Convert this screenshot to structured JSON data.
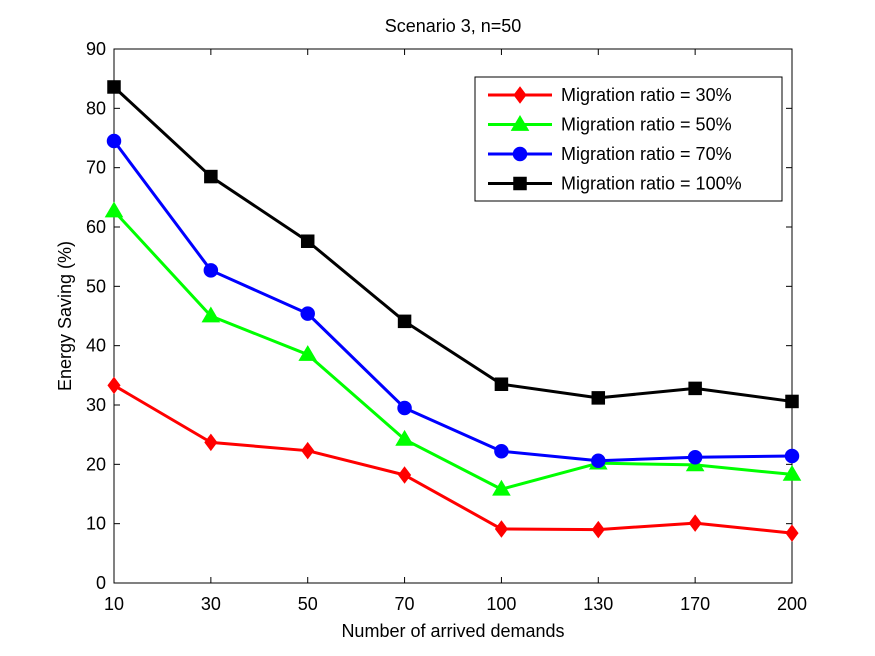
{
  "chart_data": {
    "type": "line",
    "title": "Scenario 3, n=50",
    "xlabel": "Number of arrived demands",
    "ylabel": "Energy Saving (%)",
    "categories": [
      "10",
      "30",
      "50",
      "70",
      "100",
      "130",
      "170",
      "200"
    ],
    "ylim": [
      0,
      90
    ],
    "yticks": [
      0,
      10,
      20,
      30,
      40,
      50,
      60,
      70,
      80,
      90
    ],
    "grid": false,
    "legend_position": "top-right",
    "series": [
      {
        "name": "Migration ratio = 30%",
        "color": "#ff0000",
        "marker": "diamond",
        "values": [
          33.3,
          23.7,
          22.3,
          18.2,
          9.1,
          9.0,
          10.1,
          8.4
        ]
      },
      {
        "name": "Migration ratio = 50%",
        "color": "#00ff00",
        "marker": "triangle",
        "values": [
          62.7,
          45.0,
          38.5,
          24.2,
          15.8,
          20.2,
          19.9,
          18.3
        ]
      },
      {
        "name": "Migration ratio = 70%",
        "color": "#0000ff",
        "marker": "circle",
        "values": [
          74.5,
          52.7,
          45.4,
          29.5,
          22.2,
          20.6,
          21.2,
          21.4
        ]
      },
      {
        "name": "Migration ratio = 100%",
        "color": "#000000",
        "marker": "square",
        "values": [
          83.6,
          68.5,
          57.6,
          44.1,
          33.5,
          31.2,
          32.8,
          30.6
        ]
      }
    ]
  }
}
